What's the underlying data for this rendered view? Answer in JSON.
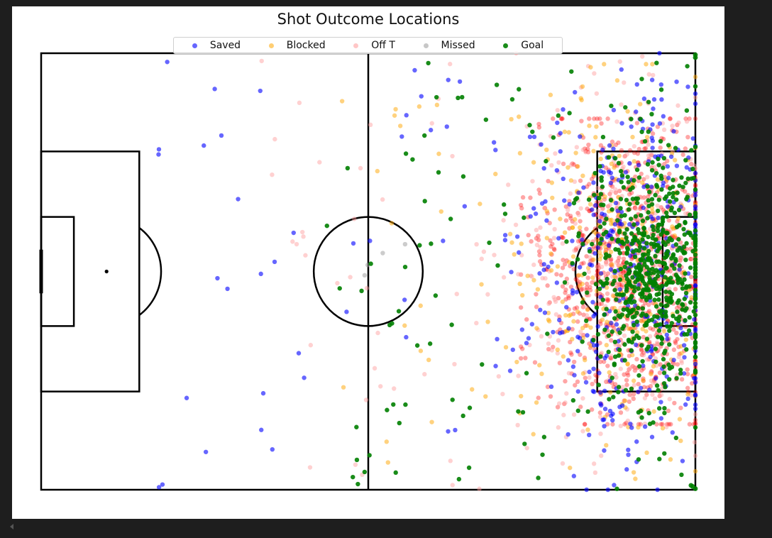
{
  "chart_data": {
    "type": "scatter",
    "title": "Shot Outcome Locations",
    "xlabel": "",
    "ylabel": "",
    "xlim": [
      0,
      120
    ],
    "ylim": [
      0,
      80
    ],
    "legend_position": "top-center",
    "grid": false,
    "background": "football-pitch",
    "goal_at": [
      120,
      40
    ],
    "series": [
      {
        "name": "Saved",
        "color": "#0000ff",
        "opacity": 0.6,
        "count": 420,
        "center": [
          108.5,
          40
        ],
        "spread": [
          9.5,
          17
        ],
        "scatter_x": [
          20,
          120
        ],
        "scatter_y": [
          0,
          80
        ]
      },
      {
        "name": "Blocked",
        "color": "#ffa500",
        "opacity": 0.5,
        "count": 320,
        "center": [
          106,
          40
        ],
        "spread": [
          8.5,
          16
        ],
        "scatter_x": [
          55,
          120
        ],
        "scatter_y": [
          2,
          78
        ]
      },
      {
        "name": "Off T",
        "color": "#ff9999",
        "opacity": 0.45,
        "count": 380,
        "center": [
          107.5,
          40
        ],
        "spread": [
          10,
          17
        ],
        "scatter_x": [
          40,
          120
        ],
        "scatter_y": [
          0,
          80
        ]
      },
      {
        "name": "Missed",
        "color": "#999999",
        "opacity": 0.5,
        "count": 4,
        "center": [
          63,
          38
        ],
        "spread": [
          3,
          3
        ],
        "scatter_x": [
          58,
          70
        ],
        "scatter_y": [
          35,
          41
        ]
      },
      {
        "name": "Goal",
        "color": "#008000",
        "opacity": 0.9,
        "count": 700,
        "center": [
          112,
          40
        ],
        "spread": [
          5.5,
          11
        ],
        "scatter_x": [
          52,
          120
        ],
        "scatter_y": [
          0,
          80
        ]
      }
    ],
    "dense_core": {
      "color": "#ff0000",
      "opacity": 0.35,
      "center": [
        108,
        40
      ],
      "spread": [
        8,
        14
      ]
    }
  }
}
